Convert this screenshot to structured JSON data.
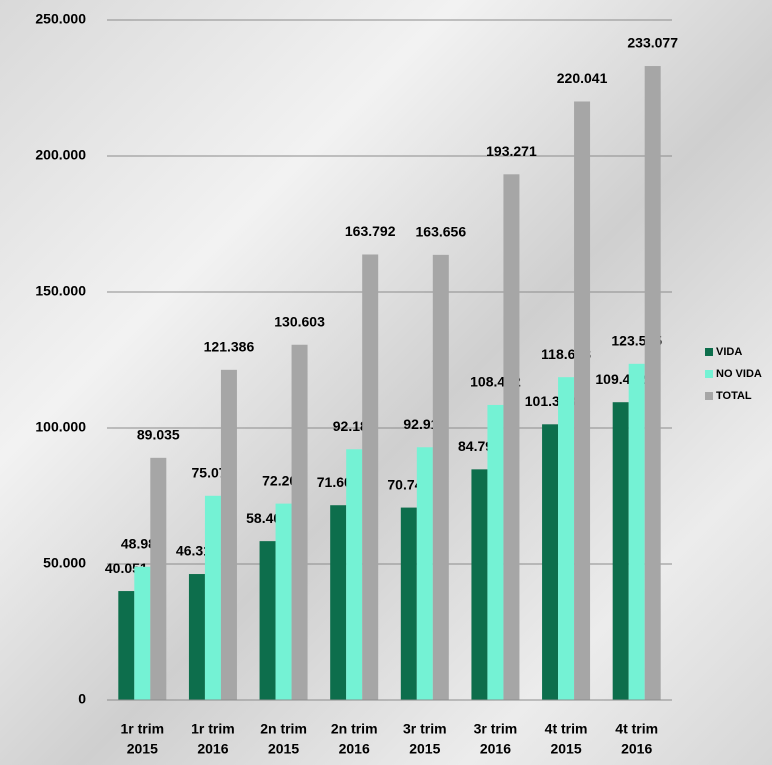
{
  "chart_data": {
    "type": "bar",
    "categories": [
      [
        "1r trim",
        "2015"
      ],
      [
        "1r trim",
        "2016"
      ],
      [
        "2n trim",
        "2015"
      ],
      [
        "2n trim",
        "2016"
      ],
      [
        "3r trim",
        "2015"
      ],
      [
        "3r trim",
        "2016"
      ],
      [
        "4t trim",
        "2015"
      ],
      [
        "4t trim",
        "2016"
      ]
    ],
    "series": [
      {
        "name": "VIDA",
        "color": "#0d6e4c",
        "values": [
          40051,
          46311,
          58403,
          71609,
          70741,
          84799,
          101358,
          109482
        ],
        "value_labels": [
          "40.051",
          "46.311",
          "58.403",
          "71.609",
          "70.741",
          "84.799",
          "101.358",
          "109.482"
        ]
      },
      {
        "name": "NO VIDA",
        "color": "#74f2d4",
        "values": [
          48985,
          75075,
          72200,
          92182,
          92916,
          108472,
          118683,
          123595
        ],
        "value_labels": [
          "48.985",
          "75.075",
          "72.200",
          "92.182",
          "92.916",
          "108.472",
          "118.683",
          "123.595"
        ]
      },
      {
        "name": "TOTAL",
        "color": "#a6a6a6",
        "values": [
          89035,
          121386,
          130603,
          163792,
          163656,
          193271,
          220041,
          233077
        ],
        "value_labels": [
          "89.035",
          "121.386",
          "130.603",
          "163.792",
          "163.656",
          "193.271",
          "220.041",
          "233.077"
        ]
      }
    ],
    "ylim": [
      0,
      250000
    ],
    "yticks": [
      0,
      {
        "value": 50000,
        "label": "50.000"
      },
      {
        "value": 100000,
        "label": "100.000"
      },
      {
        "value": 150000,
        "label": "150.000"
      },
      {
        "value": 200000,
        "label": "200.000"
      },
      {
        "value": 250000,
        "label": "250.000"
      }
    ],
    "grid": true,
    "legend": "right"
  }
}
